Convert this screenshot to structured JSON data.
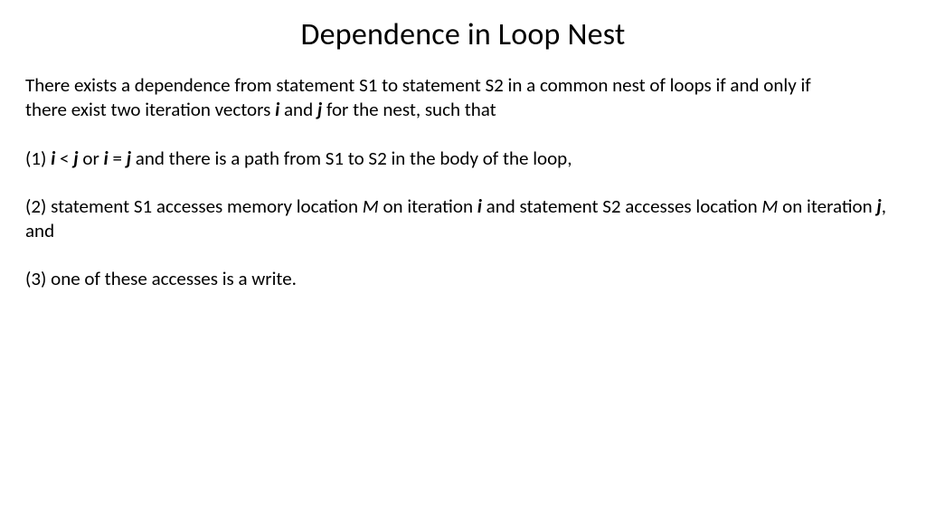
{
  "title": "Dependence in Loop Nest",
  "intro_l1": "There exists a dependence from statement S1 to statement S2 in a common nest of loops if and only if",
  "intro_l2a": "there exist two iteration vectors ",
  "i": "i",
  "intro_l2b": " and ",
  "j": "j",
  "intro_l2c": " for the nest, such that",
  "c1_a": "(1) ",
  "c1_b": " < ",
  "c1_c": " or ",
  "c1_d": " = ",
  "c1_e": " and there is a path from S1 to S2 in the body of the loop,",
  "c2_a": "(2) statement S1 accesses memory location ",
  "M": "M",
  "c2_b": " on iteration ",
  "c2_c": " and statement S2 accesses location ",
  "c2_d": " on iteration ",
  "c2_e": ", and",
  "c3": "(3) one of these accesses is a write.",
  "colors": {
    "text": "#000000",
    "background": "#ffffff"
  },
  "fonts": {
    "title_size_pt": 34,
    "body_size_pt": 21,
    "family": "Calibri"
  }
}
